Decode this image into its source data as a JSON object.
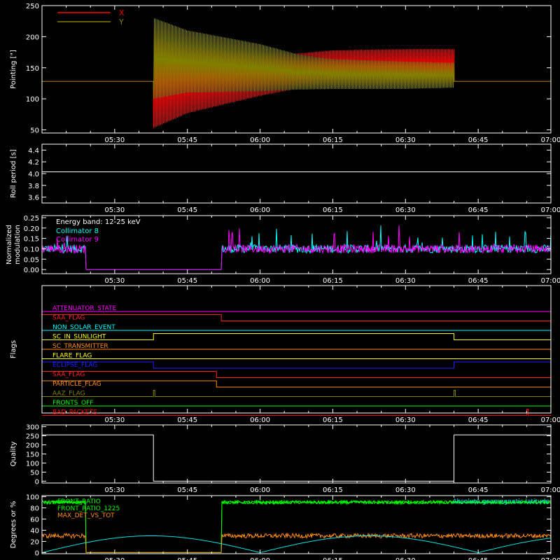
{
  "colors": {
    "background": "#000000",
    "axes": "#ffffff",
    "x_pointing": "#ff0000",
    "y_pointing": "#808000",
    "roll": "#ffffff",
    "collimator8": "#00ffff",
    "collimator9": "#ff00ff",
    "quality": "#ffffff",
    "front_ratio": "#00ff00",
    "front_ratio_1225": "#00ff00",
    "max_det_vs_tot": "#ff8c1a",
    "geomag": "#00e5e5"
  },
  "time_axis": {
    "start": "05:15",
    "end": "07:00",
    "tick_labels": [
      "05:30",
      "05:45",
      "06:00",
      "06:15",
      "06:30",
      "06:45",
      "07:00"
    ]
  },
  "chart_data": [
    {
      "type": "line",
      "panel": "pointing",
      "ylabel": "Pointing [\"]",
      "ylim": [
        45,
        250
      ],
      "yticks": [
        50,
        100,
        150,
        200,
        250
      ],
      "series": [
        {
          "name": "X",
          "x": [
            "05:15",
            "05:38",
            "05:38",
            "05:45",
            "06:00",
            "06:08",
            "06:15",
            "06:30",
            "06:40",
            "06:40",
            "07:00"
          ],
          "center": [
            128,
            128,
            128,
            132,
            140,
            145,
            150,
            152,
            152,
            128,
            128
          ],
          "amplitude": [
            0,
            0,
            75,
            55,
            35,
            28,
            28,
            28,
            28,
            0,
            0
          ]
        },
        {
          "name": "Y",
          "x": [
            "05:15",
            "05:38",
            "05:38",
            "05:45",
            "06:00",
            "06:08",
            "06:15",
            "06:30",
            "06:40",
            "06:40",
            "07:00"
          ],
          "center": [
            128,
            128,
            165,
            160,
            150,
            143,
            140,
            138,
            138,
            128,
            128
          ],
          "amplitude": [
            0,
            0,
            65,
            50,
            38,
            28,
            24,
            22,
            20,
            0,
            0
          ]
        }
      ],
      "legend": [
        "X",
        "Y"
      ]
    },
    {
      "type": "line",
      "panel": "roll",
      "ylabel": "Roll period [s]",
      "ylim": [
        3.5,
        4.5
      ],
      "yticks": [
        "3.6",
        "3.8",
        "4.0",
        "4.2",
        "4.4"
      ],
      "series": [
        {
          "name": "Roll period",
          "x": [
            "05:15",
            "07:00"
          ],
          "values": [
            4.03,
            4.03
          ]
        }
      ]
    },
    {
      "type": "line",
      "panel": "modulation",
      "ylabel": [
        "Normalized",
        "modulation"
      ],
      "ylim": [
        -0.02,
        0.26
      ],
      "yticks": [
        "0.00",
        "0.05",
        "0.10",
        "0.15",
        "0.20",
        "0.25"
      ],
      "annotation": "Energy band: 12-25 keV",
      "series": [
        {
          "name": "Collimator 8",
          "gaps": [
            [
              "05:24",
              "05:52"
            ]
          ],
          "level": 0.1,
          "noise": 0.02
        },
        {
          "name": "Collimator 9",
          "gaps": [
            [
              "05:24",
              "05:52"
            ]
          ],
          "level": 0.1,
          "noise": 0.02
        }
      ]
    },
    {
      "type": "line",
      "panel": "flags",
      "ylabel": "Flags",
      "flags": [
        {
          "name": "ATTENUATOR_STATE",
          "color": "#ff00ff",
          "pulses": []
        },
        {
          "name": "SAA_FLAG",
          "color": "#ff2020",
          "pulses": [
            [
              "05:15",
              "05:52"
            ]
          ]
        },
        {
          "name": "NON_SOLAR_EVENT",
          "color": "#00ffff",
          "pulses": []
        },
        {
          "name": "SC_IN_SUNLIGHT",
          "color": "#ffff00",
          "pulses": [
            [
              "05:38",
              "06:40"
            ]
          ]
        },
        {
          "name": "SC_TRANSMITTER",
          "color": "#ff8c1a",
          "pulses": []
        },
        {
          "name": "FLARE_FLAG",
          "color": "#ffff00",
          "pulses": []
        },
        {
          "name": "ECLIPSE_FLAG",
          "color": "#2020ff",
          "pulses": [
            [
              "05:15",
              "05:38"
            ],
            [
              "06:40",
              "07:00"
            ]
          ]
        },
        {
          "name": "SAA_FLAG",
          "color": "#ff2020",
          "pulses": [
            [
              "05:15",
              "05:51"
            ]
          ]
        },
        {
          "name": "PARTICLE_FLAG",
          "color": "#ff8c1a",
          "pulses": [
            [
              "05:15",
              "05:51"
            ]
          ]
        },
        {
          "name": "AAZ_FLAG",
          "color": "#808000",
          "pulses": [
            [
              "05:38",
              "05:38"
            ],
            [
              "06:40",
              "06:40"
            ]
          ]
        },
        {
          "name": "FRONTS_OFF",
          "color": "#00ff00",
          "pulses": []
        },
        {
          "name": "BAD_PACKETS",
          "color": "#ff0000",
          "pulses": [
            [
              "06:55",
              "06:55"
            ]
          ]
        }
      ]
    },
    {
      "type": "line",
      "panel": "quality",
      "ylabel": "Quality",
      "ylim": [
        -10,
        310
      ],
      "yticks": [
        0,
        50,
        100,
        150,
        200,
        250,
        300
      ],
      "series": [
        {
          "name": "Quality",
          "x": [
            "05:15",
            "05:38",
            "05:38",
            "06:40",
            "06:40",
            "07:00"
          ],
          "values": [
            255,
            255,
            0,
            0,
            255,
            255
          ]
        }
      ]
    },
    {
      "type": "line",
      "panel": "ratios",
      "ylabel": "Degrees or %",
      "ylim": [
        -2,
        102
      ],
      "yticks": [
        0,
        20,
        40,
        60,
        80,
        100
      ],
      "legend": [
        "FRONT_RATIO",
        "FRONT_RATIO_1225",
        "MAX_DET_VS_TOT"
      ],
      "annotation": "Absolute geomagnetic latitude",
      "series": [
        {
          "name": "FRONT_RATIO",
          "gaps": [
            [
              "05:24",
              "05:52"
            ]
          ],
          "level": 90,
          "noise": 3
        },
        {
          "name": "FRONT_RATIO_1225",
          "gaps": [
            [
              "05:24",
              "05:52"
            ]
          ],
          "level": 90,
          "noise": 3
        },
        {
          "name": "MAX_DET_VS_TOT",
          "gaps": [
            [
              "05:24",
              "05:52"
            ]
          ],
          "level": 30,
          "noise": 4
        },
        {
          "name": "Absolute geomagnetic latitude",
          "peak": 30
        }
      ]
    }
  ]
}
